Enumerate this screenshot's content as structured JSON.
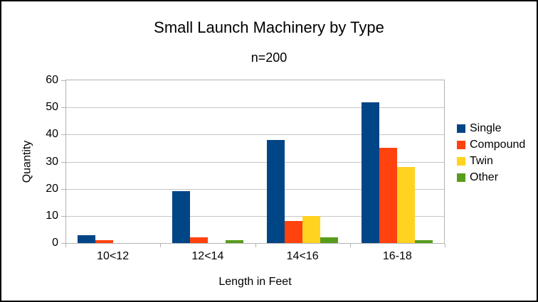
{
  "chart_data": {
    "type": "bar",
    "title": "Small Launch Machinery by Type",
    "subtitle": "n=200",
    "xlabel": "Length in Feet",
    "ylabel": "Quantity",
    "categories": [
      "10<12",
      "12<14",
      "14<16",
      "16-18"
    ],
    "series": [
      {
        "name": "Single",
        "color": "#004586",
        "values": [
          3,
          19,
          38,
          52
        ]
      },
      {
        "name": "Compound",
        "color": "#FF420E",
        "values": [
          1,
          2,
          8,
          35
        ]
      },
      {
        "name": "Twin",
        "color": "#FFD320",
        "values": [
          0,
          0,
          10,
          28
        ]
      },
      {
        "name": "Other",
        "color": "#579D1C",
        "values": [
          0,
          1,
          2,
          1
        ]
      }
    ],
    "ylim": [
      0,
      60
    ],
    "yticks": [
      0,
      10,
      20,
      30,
      40,
      50,
      60
    ],
    "grid": true,
    "legend_position": "right",
    "axis_color": "#b3b3b3"
  }
}
